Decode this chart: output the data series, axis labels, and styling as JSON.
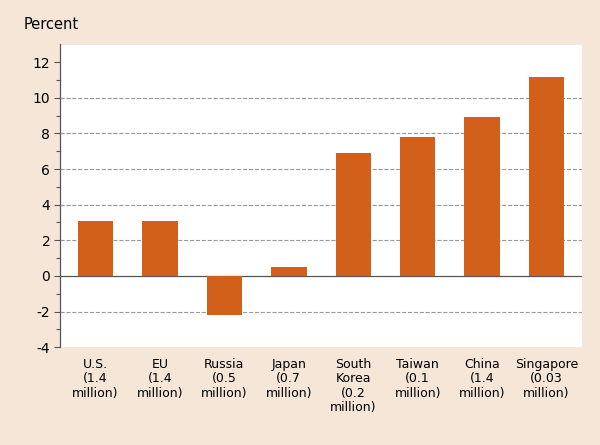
{
  "categories": [
    "U.S.\n(1.4\nmillion)",
    "EU\n(1.4\nmillion)",
    "Russia\n(0.5\nmillion)",
    "Japan\n(0.7\nmillion)",
    "South\nKorea\n(0.2\nmillion)",
    "Taiwan\n(0.1\nmillion)",
    "China\n(1.4\nmillion)",
    "Singapore\n(0.03\nmillion)"
  ],
  "values": [
    3.1,
    3.1,
    -2.2,
    0.5,
    6.9,
    7.8,
    8.9,
    11.2
  ],
  "bar_color": "#D2601A",
  "background_color": "#F5E6D8",
  "plot_bg_color": "#FFFFFF",
  "percent_label": "Percent",
  "ylim": [
    -4,
    13
  ],
  "yticks_labeled": [
    -4,
    -2,
    0,
    2,
    4,
    6,
    8,
    10,
    12
  ],
  "yticks_minor": [
    -3,
    -1,
    1,
    3,
    5,
    7,
    9,
    11
  ],
  "grid_ticks": [
    10,
    8,
    6,
    4,
    2,
    -2
  ],
  "grid_color": "#999999",
  "spine_color": "#555555",
  "label_fontsize": 10.5,
  "tick_fontsize": 10,
  "xtick_fontsize": 9
}
